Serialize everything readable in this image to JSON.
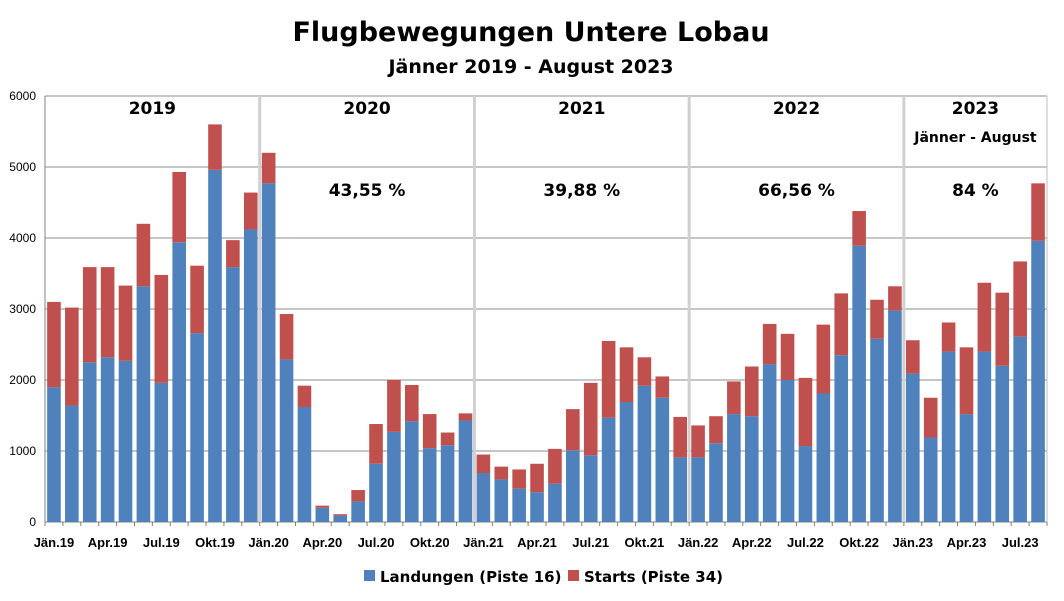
{
  "chart_data": {
    "type": "bar",
    "stacked": true,
    "title": "Flugbewegungen Untere Lobau",
    "subtitle": "Jänner 2019 - August 2023",
    "ylim": [
      0,
      6000
    ],
    "yticks": [
      0,
      1000,
      2000,
      3000,
      4000,
      5000,
      6000
    ],
    "grid": true,
    "legend_position": "bottom",
    "categories": [
      "Jän.19",
      "Feb.19",
      "Mär.19",
      "Apr.19",
      "Mai.19",
      "Jun.19",
      "Jul.19",
      "Aug.19",
      "Sep.19",
      "Okt.19",
      "Nov.19",
      "Dez.19",
      "Jän.20",
      "Feb.20",
      "Mär.20",
      "Apr.20",
      "Mai.20",
      "Jun.20",
      "Jul.20",
      "Aug.20",
      "Sep.20",
      "Okt.20",
      "Nov.20",
      "Dez.20",
      "Jän.21",
      "Feb.21",
      "Mär.21",
      "Apr.21",
      "Mai.21",
      "Jun.21",
      "Jul.21",
      "Aug.21",
      "Sep.21",
      "Okt.21",
      "Nov.21",
      "Dez.21",
      "Jän.22",
      "Feb.22",
      "Mär.22",
      "Apr.22",
      "Mai.22",
      "Jun.22",
      "Jul.22",
      "Aug.22",
      "Sep.22",
      "Okt.22",
      "Nov.22",
      "Dez.22",
      "Jän.23",
      "Feb.23",
      "Mär.23",
      "Apr.23",
      "Mai.23",
      "Jun.23",
      "Jul.23",
      "Aug.23"
    ],
    "tick_labels": [
      "Jän.19",
      "Apr.19",
      "Jul.19",
      "Okt.19",
      "Jän.20",
      "Apr.20",
      "Jul.20",
      "Okt.20",
      "Jän.21",
      "Apr.21",
      "Jul.21",
      "Okt.21",
      "Jän.22",
      "Apr.22",
      "Jul.22",
      "Okt.22",
      "Jän.23",
      "Apr.23",
      "Jul.23"
    ],
    "series": [
      {
        "name": "Landungen (Piste 16)",
        "color": "#4F81BD",
        "values": [
          1900,
          1640,
          2250,
          2320,
          2270,
          3320,
          1960,
          3940,
          2660,
          4960,
          3590,
          4120,
          4770,
          2290,
          1620,
          200,
          90,
          290,
          820,
          1270,
          1420,
          1040,
          1080,
          1430,
          690,
          600,
          470,
          420,
          540,
          1010,
          940,
          1470,
          1690,
          1920,
          1750,
          910,
          910,
          1110,
          1520,
          1490,
          2220,
          2000,
          1070,
          1810,
          2350,
          3890,
          2580,
          2980,
          2090,
          1190,
          2400,
          1520,
          2400,
          2200,
          2610,
          3960
        ]
      },
      {
        "name": "Starts (Piste 34)",
        "color": "#C0504D",
        "values": [
          1200,
          1380,
          1340,
          1270,
          1060,
          880,
          1520,
          990,
          950,
          640,
          380,
          520,
          430,
          640,
          300,
          30,
          20,
          160,
          560,
          730,
          510,
          480,
          180,
          100,
          260,
          180,
          270,
          400,
          490,
          580,
          1020,
          1080,
          770,
          400,
          300,
          570,
          450,
          380,
          460,
          700,
          570,
          650,
          960,
          970,
          870,
          490,
          550,
          340,
          470,
          560,
          410,
          940,
          970,
          1030,
          1060,
          810
        ]
      }
    ],
    "years": [
      {
        "label": "2019",
        "pct": "",
        "note": ""
      },
      {
        "label": "2020",
        "pct": "43,55 %",
        "note": ""
      },
      {
        "label": "2021",
        "pct": "39,88 %",
        "note": ""
      },
      {
        "label": "2022",
        "pct": "66,56 %",
        "note": ""
      },
      {
        "label": "2023",
        "pct": "84 %",
        "note": "Jänner - August"
      }
    ]
  }
}
